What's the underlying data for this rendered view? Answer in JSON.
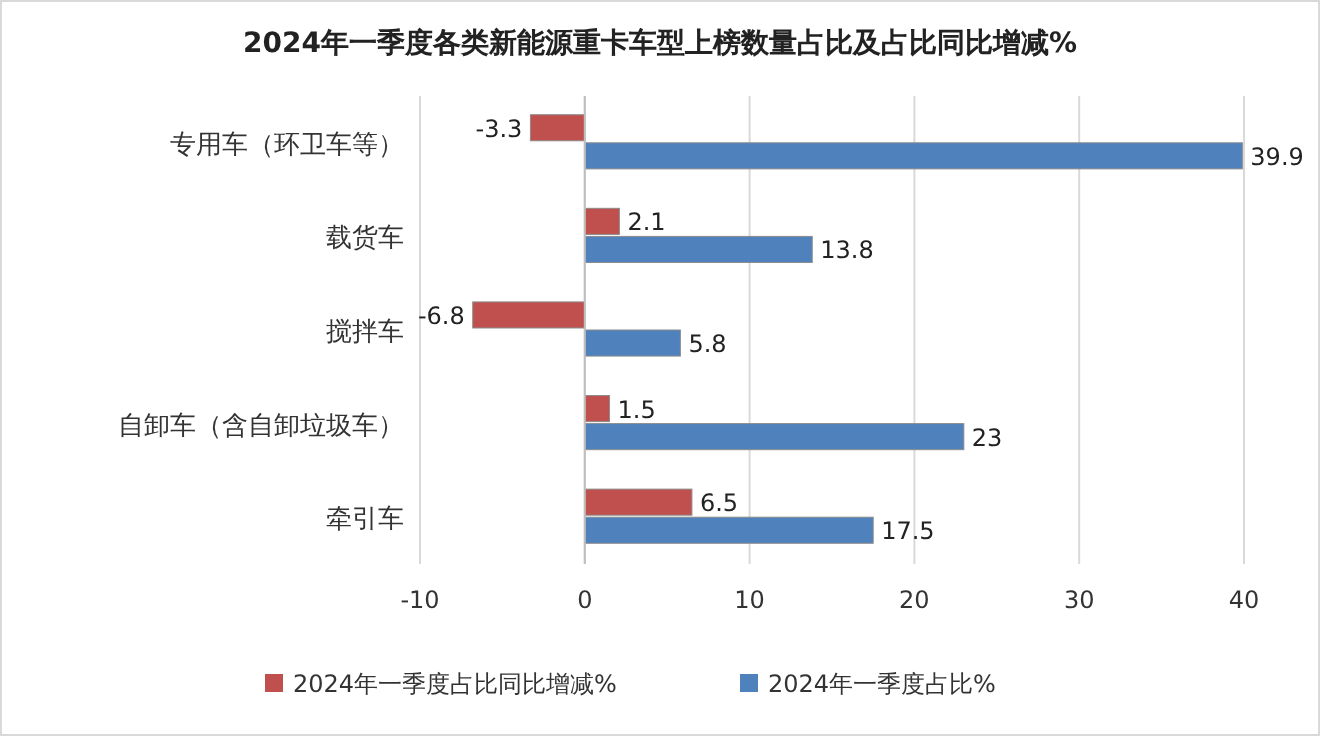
{
  "chart_data": {
    "type": "bar",
    "orientation": "horizontal",
    "title": "2024年一季度各类新能源重卡车型上榜数量占比及占比同比增减%",
    "categories": [
      "专用车（环卫车等）",
      "载货车",
      "搅拌车",
      "自卸车（含自卸垃圾车）",
      "牵引车"
    ],
    "series": [
      {
        "name": "2024年一季度占比同比增减%",
        "color": "#c0504d",
        "values": [
          -3.3,
          2.1,
          -6.8,
          1.5,
          6.5
        ]
      },
      {
        "name": "2024年一季度占比%",
        "color": "#4f81bd",
        "values": [
          39.9,
          13.8,
          5.8,
          23,
          17.5
        ]
      }
    ],
    "xlim": [
      -10,
      40
    ],
    "xticks": [
      -10,
      0,
      10,
      20,
      30,
      40
    ],
    "grid": "x",
    "data_labels": true,
    "legend": "bottom"
  }
}
